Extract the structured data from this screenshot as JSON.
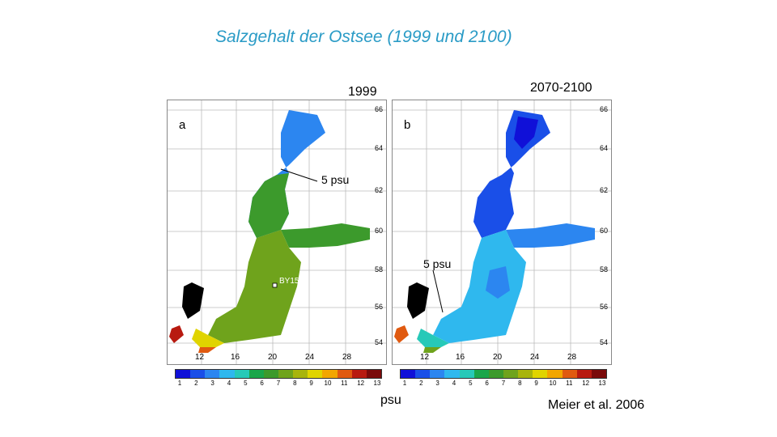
{
  "title": "Salzgehalt der Ostsee (1999 und 2100)",
  "panel_a": {
    "period": "1999",
    "letter": "a",
    "annotation": "5 psu",
    "station": "BY15"
  },
  "panel_b": {
    "period": "2070-2100",
    "letter": "b",
    "annotation": "5 psu"
  },
  "lat_ticks": [
    "66",
    "64",
    "62",
    "60",
    "58",
    "56",
    "54"
  ],
  "lon_ticks": [
    "12",
    "16",
    "20",
    "24",
    "28"
  ],
  "colorbar": {
    "ticks": [
      "1",
      "2",
      "3",
      "4",
      "5",
      "6",
      "7",
      "8",
      "9",
      "10",
      "11",
      "12",
      "13"
    ],
    "colors": [
      "#1010d8",
      "#1a4fe8",
      "#2c86f0",
      "#2fb8ee",
      "#27c9b8",
      "#1aa64a",
      "#3c9a2c",
      "#6fa31c",
      "#a8b40c",
      "#e0d400",
      "#f2a600",
      "#e05a10",
      "#b81a10",
      "#7a0a0a"
    ]
  },
  "unit": "psu",
  "citation": "Meier et al. 2006"
}
